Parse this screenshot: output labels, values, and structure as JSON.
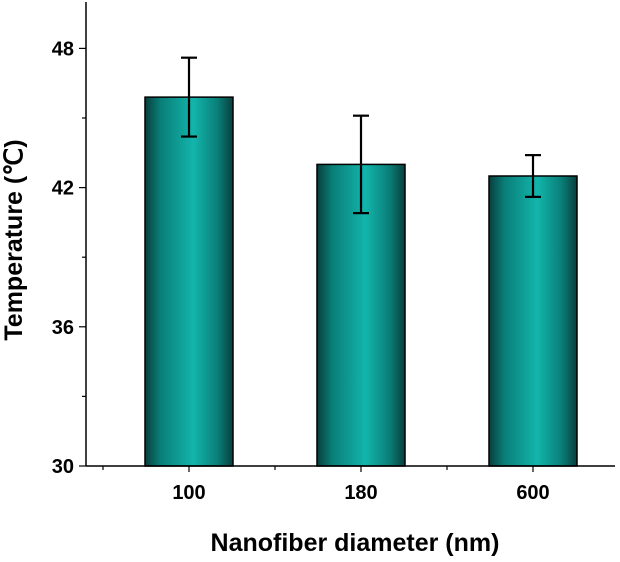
{
  "chart_data": {
    "type": "bar",
    "title": "",
    "xlabel": "Nanofiber diameter (nm)",
    "ylabel": "Temperature (℃)",
    "categories": [
      "100",
      "180",
      "600"
    ],
    "values": [
      45.9,
      43.0,
      42.5
    ],
    "error": [
      1.7,
      2.1,
      0.9
    ],
    "ylim": [
      30,
      50
    ],
    "yticks": [
      "30",
      "36",
      "42",
      "48"
    ],
    "grid": false,
    "legend": "none",
    "bar_color": "#0f9a94"
  }
}
